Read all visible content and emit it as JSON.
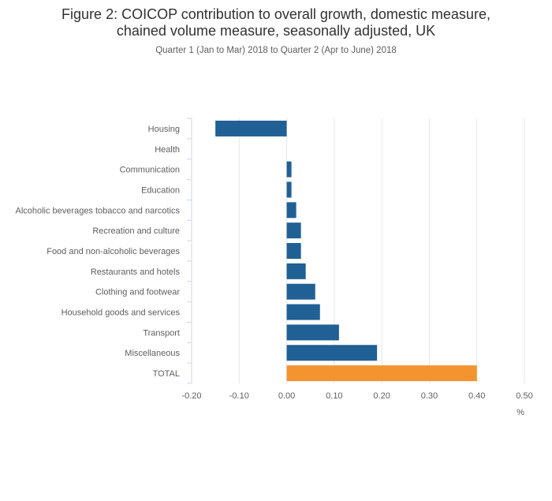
{
  "title_line1": "Figure 2: COICOP contribution to overall growth, domestic measure,",
  "title_line2": "chained volume measure, seasonally adjusted, UK",
  "subtitle": "Quarter 1 (Jan to Mar) 2018 to Quarter 2 (Apr to June) 2018",
  "colors": {
    "bar": "#206095",
    "total": "#F39431",
    "grid": "#e6e6e6",
    "axis": "#ccd6eb",
    "label": "#5e5e5e"
  },
  "chart_data": {
    "type": "bar",
    "orientation": "horizontal",
    "title": "Figure 2: COICOP contribution to overall growth, domestic measure, chained volume measure, seasonally adjusted, UK",
    "subtitle": "Quarter 1 (Jan to Mar) 2018 to Quarter 2 (Apr to June) 2018",
    "categories": [
      "Housing",
      "Health",
      "Communication",
      "Education",
      "Alcoholic beverages tobacco and narcotics",
      "Recreation and culture",
      "Food and non-alcoholic beverages",
      "Restaurants and hotels",
      "Clothing and footwear",
      "Household goods and services",
      "Transport",
      "Miscellaneous",
      "TOTAL"
    ],
    "values": [
      -0.15,
      0.0,
      0.01,
      0.01,
      0.02,
      0.03,
      0.03,
      0.04,
      0.06,
      0.07,
      0.11,
      0.19,
      0.4
    ],
    "highlight_category": "TOTAL",
    "xlim": [
      -0.2,
      0.5
    ],
    "xticks": [
      -0.2,
      -0.1,
      0.0,
      0.1,
      0.2,
      0.3,
      0.4,
      0.5
    ],
    "xtick_labels": [
      "-0.20",
      "-0.10",
      "0.00",
      "0.10",
      "0.20",
      "0.30",
      "0.40",
      "0.50"
    ],
    "xlabel": "%",
    "ylabel": "",
    "grid": true,
    "legend": "none"
  }
}
